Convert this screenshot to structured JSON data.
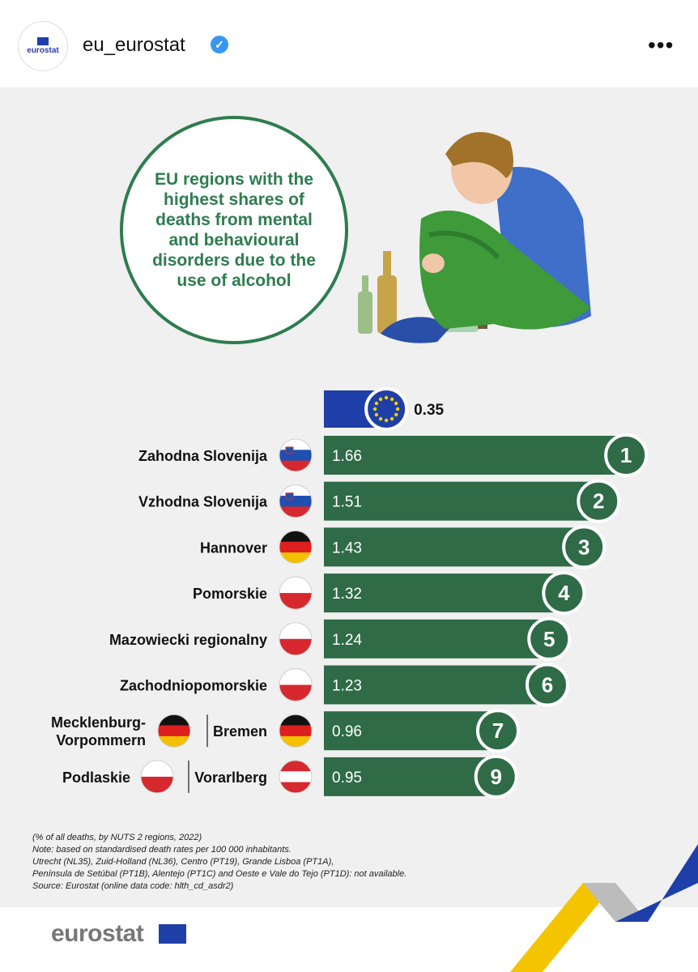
{
  "post": {
    "account": "eu_eurostat",
    "avatar_text": "eurostat",
    "more_label": "•••"
  },
  "infographic": {
    "title": "EU regions with the highest shares of deaths from mental and behavioural disorders due to the use of alcohol",
    "logo_text": "eurostat",
    "notes": [
      "(% of all deaths, by NUTS 2 regions, 2022)",
      "Note: based on standardised death rates per 100 000 inhabitants.",
      "Utrecht (NL35), Zuid-Holland (NL36), Centro (PT19), Grande Lisboa (PT1A),",
      "Península de Setúbal (PT1B), Alentejo (PT1C) and Oeste e Vale do Tejo (PT1D): not available.",
      "Source: Eurostat (online data code: hlth_cd_asdr2)"
    ]
  },
  "colors": {
    "bar": "#2e6b46",
    "title_green": "#2e7d4f",
    "eu_blue": "#1f3fa8",
    "eu_star": "#f5d000"
  },
  "chart_data": {
    "type": "bar",
    "orientation": "horizontal",
    "unit": "% of all deaths",
    "eu_average": {
      "label": "EU",
      "value": 0.35
    },
    "rows": [
      {
        "regions": [
          {
            "name": "Zahodna Slovenija",
            "flag": "slovenia"
          }
        ],
        "value": 1.66,
        "rank": "1"
      },
      {
        "regions": [
          {
            "name": "Vzhodna Slovenija",
            "flag": "slovenia"
          }
        ],
        "value": 1.51,
        "rank": "2"
      },
      {
        "regions": [
          {
            "name": "Hannover",
            "flag": "germany"
          }
        ],
        "value": 1.43,
        "rank": "3"
      },
      {
        "regions": [
          {
            "name": "Pomorskie",
            "flag": "poland"
          }
        ],
        "value": 1.32,
        "rank": "4"
      },
      {
        "regions": [
          {
            "name": "Mazowiecki regionalny",
            "flag": "poland"
          }
        ],
        "value": 1.24,
        "rank": "5"
      },
      {
        "regions": [
          {
            "name": "Zachodniopomorskie",
            "flag": "poland"
          }
        ],
        "value": 1.23,
        "rank": "6"
      },
      {
        "regions": [
          {
            "name": "Mecklenburg-\nVorpommern",
            "flag": "germany"
          },
          {
            "name": "Bremen",
            "flag": "germany"
          }
        ],
        "value": 0.96,
        "rank": "7"
      },
      {
        "regions": [
          {
            "name": "Podlaskie",
            "flag": "poland"
          },
          {
            "name": "Vorarlberg",
            "flag": "austria"
          }
        ],
        "value": 0.95,
        "rank": "9"
      }
    ]
  }
}
